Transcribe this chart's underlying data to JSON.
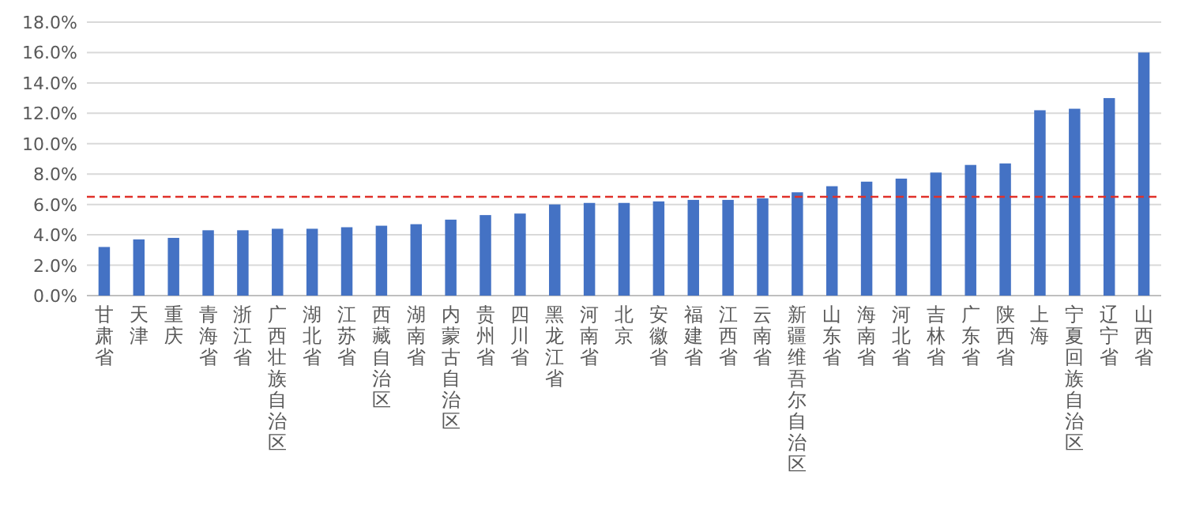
{
  "chart_data": {
    "type": "bar",
    "categories": [
      "甘肃省",
      "天津",
      "重庆",
      "青海省",
      "浙江省",
      "广西壮族自治区",
      "湖北省",
      "江苏省",
      "西藏自治区",
      "湖南省",
      "内蒙古自治区",
      "贵州省",
      "四川省",
      "黑龙江省",
      "河南省",
      "北京",
      "安徽省",
      "福建省",
      "江西省",
      "云南省",
      "新疆维吾尔自治区",
      "山东省",
      "海南省",
      "河北省",
      "吉林省",
      "广东省",
      "陕西省",
      "上海",
      "宁夏回族自治区",
      "辽宁省",
      "山西省"
    ],
    "values": [
      3.2,
      3.7,
      3.8,
      4.3,
      4.3,
      4.4,
      4.4,
      4.5,
      4.6,
      4.7,
      5.0,
      5.3,
      5.4,
      6.0,
      6.1,
      6.1,
      6.2,
      6.3,
      6.3,
      6.4,
      6.8,
      7.2,
      7.5,
      7.7,
      8.1,
      8.6,
      8.7,
      12.2,
      12.3,
      13.0,
      16.0
    ],
    "color": "#4472c4",
    "ylim": [
      0,
      18
    ],
    "yticks": [
      {
        "value": 0,
        "label": "0.0%"
      },
      {
        "value": 2,
        "label": "2.0%"
      },
      {
        "value": 4,
        "label": "4.0%"
      },
      {
        "value": 6,
        "label": "6.0%"
      },
      {
        "value": 8,
        "label": "8.0%"
      },
      {
        "value": 10,
        "label": "10.0%"
      },
      {
        "value": 12,
        "label": "12.0%"
      },
      {
        "value": 14,
        "label": "14.0%"
      },
      {
        "value": 16,
        "label": "16.0%"
      },
      {
        "value": 18,
        "label": "18.0%"
      }
    ],
    "grid": "y",
    "ref_lines": [
      {
        "axis": "y",
        "value": 6.5,
        "color": "#e0302a",
        "line_style": "dashed"
      }
    ]
  }
}
